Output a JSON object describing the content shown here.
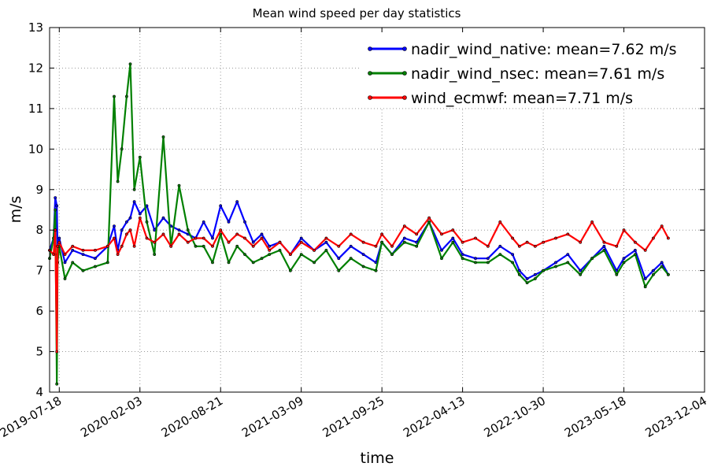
{
  "chart_data": {
    "type": "line",
    "title": "Mean wind speed per day statistics",
    "xlabel": "time",
    "ylabel": "m/s",
    "xlim": [
      "2019-06-24",
      "2023-12-04"
    ],
    "ylim": [
      4,
      13
    ],
    "grid": true,
    "legend_position": "top-right",
    "x_ticks": [
      "2019-07-18",
      "2020-02-03",
      "2020-08-21",
      "2021-03-09",
      "2021-09-25",
      "2022-04-13",
      "2022-10-30",
      "2023-05-18",
      "2023-12-04"
    ],
    "y_ticks": [
      "4",
      "5",
      "6",
      "7",
      "8",
      "9",
      "10",
      "11",
      "12",
      "13"
    ],
    "x": [
      "2019-06-24",
      "2019-07-04",
      "2019-07-08",
      "2019-07-12",
      "2019-07-14",
      "2019-07-18",
      "2019-08-01",
      "2019-08-20",
      "2019-09-15",
      "2019-10-15",
      "2019-11-15",
      "2019-12-01",
      "2019-12-10",
      "2019-12-20",
      "2020-01-01",
      "2020-01-10",
      "2020-01-20",
      "2020-02-03",
      "2020-02-20",
      "2020-03-10",
      "2020-04-01",
      "2020-04-20",
      "2020-05-10",
      "2020-06-01",
      "2020-06-20",
      "2020-07-10",
      "2020-08-01",
      "2020-08-21",
      "2020-09-10",
      "2020-10-01",
      "2020-10-20",
      "2020-11-10",
      "2020-12-01",
      "2020-12-20",
      "2021-01-15",
      "2021-02-10",
      "2021-03-09",
      "2021-04-10",
      "2021-05-10",
      "2021-06-10",
      "2021-07-10",
      "2021-08-10",
      "2021-09-10",
      "2021-09-25",
      "2021-10-20",
      "2021-11-20",
      "2021-12-20",
      "2022-01-20",
      "2022-02-20",
      "2022-03-20",
      "2022-04-13",
      "2022-05-15",
      "2022-06-15",
      "2022-07-15",
      "2022-08-15",
      "2022-09-01",
      "2022-09-20",
      "2022-10-10",
      "2022-10-30",
      "2022-11-30",
      "2022-12-30",
      "2023-01-30",
      "2023-02-28",
      "2023-03-30",
      "2023-04-30",
      "2023-05-18",
      "2023-06-15",
      "2023-07-10",
      "2023-07-30",
      "2023-08-20",
      "2023-09-05"
    ],
    "series": [
      {
        "name": "nadir_wind_native: mean=7.62 m/s",
        "color": "#0000ff",
        "values": [
          7.5,
          7.8,
          8.8,
          8.6,
          7.4,
          7.8,
          7.2,
          7.5,
          7.4,
          7.3,
          7.6,
          8.1,
          7.5,
          8.0,
          8.2,
          8.3,
          8.7,
          8.4,
          8.6,
          8.0,
          8.3,
          8.1,
          8.0,
          7.9,
          7.8,
          8.2,
          7.8,
          8.6,
          8.2,
          8.7,
          8.2,
          7.7,
          7.9,
          7.6,
          7.7,
          7.4,
          7.8,
          7.5,
          7.7,
          7.3,
          7.6,
          7.4,
          7.2,
          7.7,
          7.4,
          7.8,
          7.7,
          8.2,
          7.5,
          7.8,
          7.4,
          7.3,
          7.3,
          7.6,
          7.4,
          7.0,
          6.8,
          6.9,
          7.0,
          7.2,
          7.4,
          7.0,
          7.3,
          7.6,
          7.0,
          7.3,
          7.5,
          6.8,
          7.0,
          7.2,
          6.9
        ]
      },
      {
        "name": "nadir_wind_nsec: mean=7.61 m/s",
        "color": "#008000",
        "values": [
          7.3,
          7.8,
          8.5,
          4.2,
          7.2,
          7.6,
          6.8,
          7.2,
          7.0,
          7.1,
          7.2,
          11.3,
          9.2,
          10.0,
          11.3,
          12.1,
          9.0,
          9.8,
          8.2,
          7.4,
          10.3,
          7.6,
          9.1,
          8.0,
          7.6,
          7.6,
          7.2,
          7.9,
          7.2,
          7.6,
          7.4,
          7.2,
          7.3,
          7.4,
          7.5,
          7.0,
          7.4,
          7.2,
          7.5,
          7.0,
          7.3,
          7.1,
          7.0,
          7.7,
          7.4,
          7.7,
          7.6,
          8.2,
          7.3,
          7.7,
          7.3,
          7.2,
          7.2,
          7.4,
          7.2,
          6.9,
          6.7,
          6.8,
          7.0,
          7.1,
          7.2,
          6.9,
          7.3,
          7.5,
          6.9,
          7.2,
          7.4,
          6.6,
          6.9,
          7.1,
          6.9
        ]
      },
      {
        "name": "wind_ecmwf: mean=7.71 m/s",
        "color": "#ff0000",
        "values": [
          7.5,
          7.4,
          8.0,
          5.0,
          7.6,
          7.7,
          7.4,
          7.6,
          7.5,
          7.5,
          7.6,
          7.8,
          7.4,
          7.6,
          7.9,
          8.0,
          7.6,
          8.3,
          7.8,
          7.7,
          7.9,
          7.6,
          7.9,
          7.7,
          7.8,
          7.8,
          7.6,
          8.0,
          7.7,
          7.9,
          7.8,
          7.6,
          7.8,
          7.5,
          7.7,
          7.4,
          7.7,
          7.5,
          7.8,
          7.6,
          7.9,
          7.7,
          7.6,
          7.9,
          7.6,
          8.1,
          7.9,
          8.3,
          7.9,
          8.0,
          7.7,
          7.8,
          7.6,
          8.2,
          7.8,
          7.6,
          7.7,
          7.6,
          7.7,
          7.8,
          7.9,
          7.7,
          8.2,
          7.7,
          7.6,
          8.0,
          7.7,
          7.5,
          7.8,
          8.1,
          7.8
        ]
      }
    ]
  }
}
